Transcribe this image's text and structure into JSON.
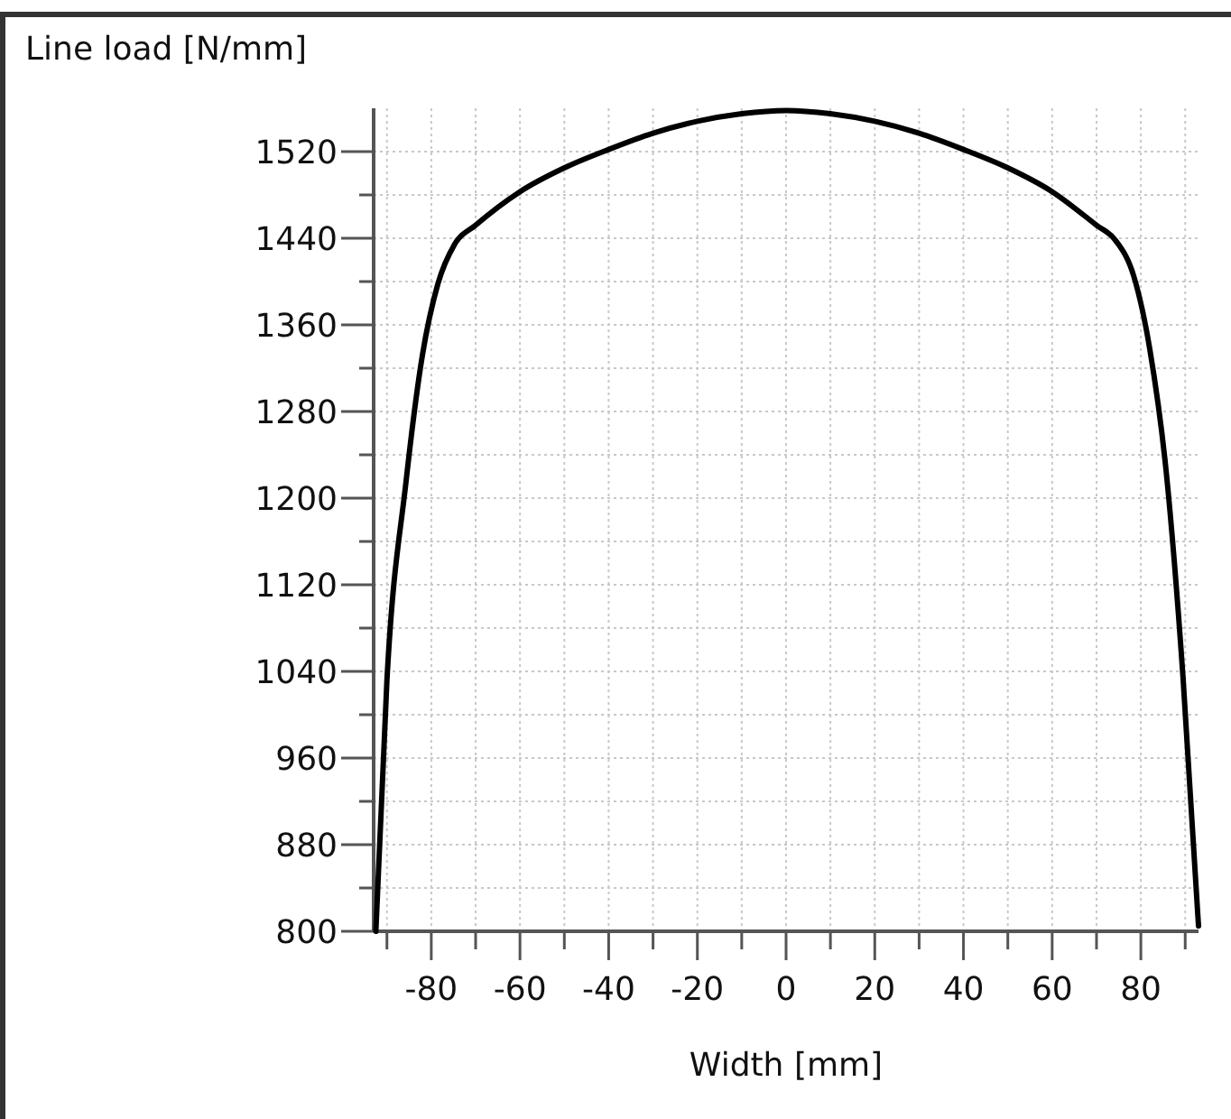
{
  "chart_data": {
    "type": "line",
    "xlabel": "Width [mm]",
    "ylabel": "Line load [N/mm]",
    "x": [
      -92.5,
      -90,
      -85.7,
      -82,
      -78.5,
      -74.8,
      -70,
      -60,
      -50,
      -40,
      -30,
      -20,
      -10,
      0,
      10,
      20,
      30,
      40,
      50,
      60,
      70,
      74.3,
      78.4,
      82,
      85.7,
      89.5,
      93
    ],
    "series": [
      {
        "color": "#000000",
        "values": [
          800,
          1032,
          1215,
          1332,
          1398,
          1434,
          1452,
          1483,
          1505,
          1522,
          1537,
          1548,
          1555,
          1558,
          1555,
          1548,
          1537,
          1522,
          1505,
          1483,
          1452,
          1438,
          1405,
          1338,
          1225,
          1035,
          805
        ]
      }
    ],
    "xlim": [
      -93,
      93
    ],
    "ylim": [
      800,
      1560
    ],
    "xticks": [
      {
        "value": -90,
        "label": null
      },
      -80,
      {
        "value": -70,
        "label": null
      },
      -60,
      {
        "value": -50,
        "label": null
      },
      -40,
      {
        "value": -30,
        "label": null
      },
      -20,
      {
        "value": -10,
        "label": null
      },
      0,
      {
        "value": 10,
        "label": null
      },
      20,
      {
        "value": 30,
        "label": null
      },
      40,
      {
        "value": 50,
        "label": null
      },
      60,
      {
        "value": 70,
        "label": null
      },
      80,
      {
        "value": 90,
        "label": null
      }
    ],
    "yticks": [
      800,
      {
        "value": 840,
        "label": null
      },
      880,
      {
        "value": 920,
        "label": null
      },
      960,
      {
        "value": 1000,
        "label": null
      },
      1040,
      {
        "value": 1080,
        "label": null
      },
      1120,
      {
        "value": 1160,
        "label": null
      },
      1200,
      {
        "value": 1240,
        "label": null
      },
      1280,
      {
        "value": 1320,
        "label": null
      },
      1360,
      {
        "value": 1400,
        "label": null
      },
      1440,
      {
        "value": 1480,
        "label": null
      },
      1520
    ],
    "grid": true,
    "marker": "none",
    "line_style": "solid"
  }
}
